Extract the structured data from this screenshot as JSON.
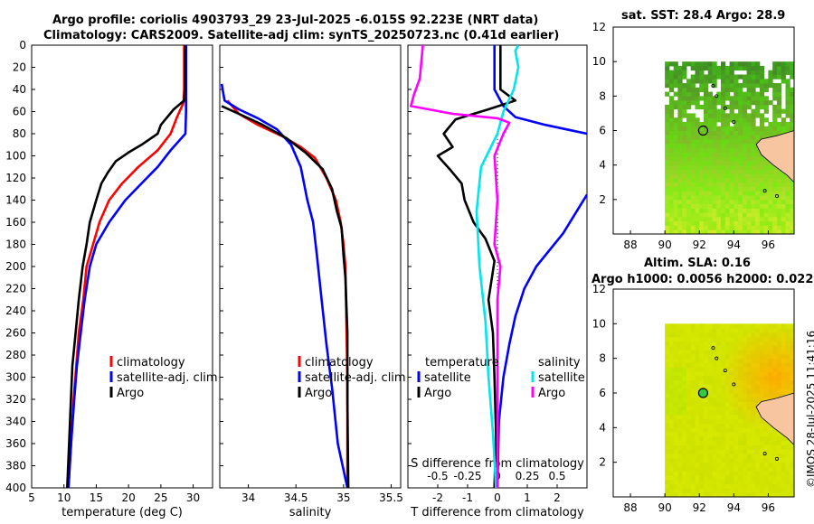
{
  "title_line1": "Argo profile: coriolis 4903793_29 23-Jul-2025 -6.015S 92.223E (NRT data)",
  "title_line2": "Climatology: CARS2009. Satellite-adj clim: synTS_20250723.nc (0.41d earlier)",
  "map1_title": "sat. SST: 28.4 Argo: 28.9",
  "map2_title_line1": "Altim. SLA: 0.16",
  "map2_title_line2": "Argo h1000: 0.0056 h2000: 0.022",
  "stamp": "©IMOS 28-Jul-2025 11:41:16",
  "colors": {
    "climatology": "#ff0000",
    "satellite": "#0000ff",
    "argo": "#000000",
    "sal_sat": "#00e5ee",
    "sal_argo": "#ff00ff",
    "land": "#f7c59f"
  },
  "chart_data": [
    {
      "type": "line",
      "id": "temperature",
      "xlabel": "temperature (deg C)",
      "ylabel": "",
      "xlim": [
        5,
        33
      ],
      "ylim": [
        400,
        0
      ],
      "xticks": [
        "5",
        "10",
        "15",
        "20",
        "25",
        "30"
      ],
      "yticks": [
        "0",
        "20",
        "40",
        "60",
        "80",
        "100",
        "120",
        "140",
        "160",
        "180",
        "200",
        "220",
        "240",
        "260",
        "280",
        "300",
        "320",
        "340",
        "360",
        "380",
        "400"
      ],
      "legend": [
        "climatology",
        "satellite-adj. clim",
        "Argo"
      ],
      "series": [
        {
          "name": "climatology",
          "color": "climatology",
          "points": [
            [
              28.6,
              0
            ],
            [
              28.6,
              40
            ],
            [
              28.5,
              52
            ],
            [
              27.5,
              65
            ],
            [
              26.5,
              80
            ],
            [
              24.5,
              95
            ],
            [
              21.5,
              110
            ],
            [
              19,
              125
            ],
            [
              17,
              140
            ],
            [
              15.5,
              160
            ],
            [
              14.5,
              180
            ],
            [
              13.5,
              200
            ],
            [
              13,
              230
            ],
            [
              12.3,
              260
            ],
            [
              11.9,
              290
            ],
            [
              11.5,
              320
            ],
            [
              11.1,
              360
            ],
            [
              10.7,
              400
            ]
          ]
        },
        {
          "name": "satellite-adj. clim",
          "color": "satellite",
          "points": [
            [
              28.9,
              0
            ],
            [
              28.9,
              60
            ],
            [
              28.8,
              80
            ],
            [
              26.5,
              95
            ],
            [
              24.5,
              110
            ],
            [
              22,
              125
            ],
            [
              19.5,
              140
            ],
            [
              17,
              160
            ],
            [
              15,
              180
            ],
            [
              14,
              200
            ],
            [
              13.2,
              230
            ],
            [
              12.6,
              260
            ],
            [
              12,
              290
            ],
            [
              11.6,
              320
            ],
            [
              11.1,
              360
            ],
            [
              10.7,
              400
            ]
          ]
        },
        {
          "name": "Argo",
          "color": "argo",
          "points": [
            [
              28.7,
              0
            ],
            [
              28.7,
              40
            ],
            [
              28.6,
              50
            ],
            [
              27,
              58
            ],
            [
              26,
              65
            ],
            [
              25,
              72
            ],
            [
              24.5,
              80
            ],
            [
              22,
              90
            ],
            [
              20,
              97
            ],
            [
              18,
              105
            ],
            [
              16.8,
              115
            ],
            [
              15.8,
              125
            ],
            [
              15,
              140
            ],
            [
              14,
              160
            ],
            [
              13.5,
              180
            ],
            [
              12.9,
              200
            ],
            [
              12.3,
              230
            ],
            [
              11.8,
              260
            ],
            [
              11.3,
              290
            ],
            [
              11,
              330
            ],
            [
              10.8,
              360
            ],
            [
              10.5,
              400
            ]
          ]
        }
      ]
    },
    {
      "type": "line",
      "id": "salinity",
      "xlabel": "salinity",
      "xlim": [
        33.7,
        35.6
      ],
      "ylim": [
        400,
        0
      ],
      "xticks": [
        "34",
        "34.5",
        "35",
        "35.5"
      ],
      "legend": [
        "climatology",
        "satellite-adj. clim",
        "Argo"
      ],
      "series": [
        {
          "name": "climatology",
          "color": "climatology",
          "points": [
            [
              33.78,
              50
            ],
            [
              33.9,
              62
            ],
            [
              34.1,
              72
            ],
            [
              34.35,
              82
            ],
            [
              34.55,
              92
            ],
            [
              34.7,
              102
            ],
            [
              34.82,
              120
            ],
            [
              34.92,
              140
            ],
            [
              34.97,
              160
            ],
            [
              35,
              180
            ],
            [
              35.02,
              200
            ],
            [
              35.03,
              250
            ],
            [
              35.04,
              300
            ],
            [
              35.04,
              400
            ]
          ]
        },
        {
          "name": "satellite-adj. clim",
          "color": "satellite",
          "points": [
            [
              33.72,
              35
            ],
            [
              33.75,
              50
            ],
            [
              33.9,
              58
            ],
            [
              34.1,
              66
            ],
            [
              34.3,
              76
            ],
            [
              34.45,
              90
            ],
            [
              34.55,
              110
            ],
            [
              34.62,
              140
            ],
            [
              34.68,
              160
            ],
            [
              34.72,
              190
            ],
            [
              34.77,
              230
            ],
            [
              34.82,
              270
            ],
            [
              34.88,
              310
            ],
            [
              34.94,
              360
            ],
            [
              35.04,
              400
            ]
          ]
        },
        {
          "name": "Argo",
          "color": "argo",
          "points": [
            [
              33.72,
              55
            ],
            [
              33.9,
              62
            ],
            [
              34.15,
              72
            ],
            [
              34.4,
              84
            ],
            [
              34.6,
              97
            ],
            [
              34.78,
              112
            ],
            [
              34.88,
              130
            ],
            [
              34.93,
              150
            ],
            [
              34.98,
              165
            ],
            [
              35,
              190
            ],
            [
              35.02,
              210
            ],
            [
              35.04,
              260
            ],
            [
              35.04,
              320
            ],
            [
              35.05,
              400
            ]
          ]
        }
      ]
    },
    {
      "type": "line",
      "id": "difference",
      "xlabel": "T difference from climatology",
      "xlabel_top": "S difference from climatology",
      "xlim": [
        -3,
        3
      ],
      "ylim": [
        400,
        0
      ],
      "xticks": [
        "-2",
        "-1",
        "0",
        "1",
        "2"
      ],
      "xticks_top": [
        "-0.5",
        "-0.25",
        "0",
        "0.25",
        "0.5"
      ],
      "legend_temperature_title": "temperature",
      "legend_salinity_title": "salinity",
      "legend_temperature": [
        "satellite",
        "Argo"
      ],
      "legend_salinity": [
        "satellite",
        "Argo"
      ],
      "series": [
        {
          "name": "satellite",
          "group": "temperature",
          "color": "satellite",
          "points": [
            [
              -0.1,
              0
            ],
            [
              -0.1,
              40
            ],
            [
              0.2,
              55
            ],
            [
              0.6,
              65
            ],
            [
              1.6,
              72
            ],
            [
              3,
              80
            ],
            [
              3,
              80
            ]
          ]
        },
        {
          "name": "satellite",
          "group": "temperature",
          "color": "satellite",
          "points": [
            [
              3,
              135
            ],
            [
              2.2,
              170
            ],
            [
              1.3,
              200
            ],
            [
              0.9,
              220
            ],
            [
              0.6,
              245
            ],
            [
              0.4,
              270
            ],
            [
              0.2,
              300
            ],
            [
              0.05,
              340
            ],
            [
              0,
              400
            ]
          ]
        },
        {
          "name": "Argo",
          "group": "temperature",
          "color": "argo",
          "points": [
            [
              0.1,
              0
            ],
            [
              0.1,
              40
            ],
            [
              0.6,
              50
            ],
            [
              -0.3,
              58
            ],
            [
              -1.4,
              67
            ],
            [
              -1.8,
              80
            ],
            [
              -1.5,
              92
            ],
            [
              -2,
              100
            ],
            [
              -1.6,
              112
            ],
            [
              -1.2,
              125
            ],
            [
              -1.1,
              140
            ],
            [
              -0.8,
              160
            ],
            [
              -0.4,
              175
            ],
            [
              -0.1,
              195
            ],
            [
              -0.3,
              230
            ],
            [
              -0.15,
              260
            ],
            [
              -0.1,
              300
            ],
            [
              -0.05,
              350
            ],
            [
              -0.1,
              400
            ]
          ]
        },
        {
          "name": "satellite",
          "group": "salinity",
          "color": "sal_sat",
          "points": [
            [
              0.7,
              0
            ],
            [
              0.6,
              5
            ],
            [
              0.7,
              20
            ],
            [
              0.55,
              40
            ],
            [
              0.2,
              60
            ],
            [
              0,
              80
            ],
            [
              -0.55,
              110
            ],
            [
              -0.7,
              150
            ],
            [
              -0.6,
              200
            ],
            [
              -0.4,
              250
            ],
            [
              -0.3,
              300
            ],
            [
              -0.15,
              350
            ],
            [
              -0.05,
              400
            ]
          ]
        },
        {
          "name": "Argo",
          "group": "salinity",
          "color": "sal_argo",
          "points": [
            [
              -2.5,
              0
            ],
            [
              -2.6,
              30
            ],
            [
              -2.8,
              45
            ],
            [
              -2.9,
              55
            ],
            [
              -1.5,
              62
            ],
            [
              0,
              66
            ],
            [
              0.4,
              70
            ],
            [
              0.2,
              80
            ],
            [
              -0.1,
              100
            ],
            [
              0,
              140
            ],
            [
              -0.1,
              180
            ],
            [
              0.1,
              200
            ],
            [
              0,
              230
            ],
            [
              0,
              260
            ],
            [
              0,
              300
            ],
            [
              0,
              340
            ],
            [
              0,
              400
            ]
          ]
        }
      ]
    },
    {
      "type": "heatmap",
      "id": "sst-map",
      "title": "sat. SST: 28.4 Argo: 28.9",
      "xlim": [
        87,
        97.5
      ],
      "ylim": [
        0,
        12
      ],
      "xticks": [
        "88",
        "90",
        "92",
        "94",
        "96"
      ],
      "yticks": [
        "2",
        "4",
        "6",
        "8",
        "10",
        "12"
      ],
      "argo_position": [
        92.22,
        6.0
      ]
    },
    {
      "type": "heatmap",
      "id": "sla-map",
      "title": "Altim. SLA: 0.16",
      "xlim": [
        87,
        97.5
      ],
      "ylim": [
        0,
        12
      ],
      "xticks": [
        "88",
        "90",
        "92",
        "94",
        "96"
      ],
      "yticks": [
        "2",
        "4",
        "6",
        "8",
        "10",
        "12"
      ],
      "argo_position": [
        92.22,
        6.0
      ]
    }
  ]
}
